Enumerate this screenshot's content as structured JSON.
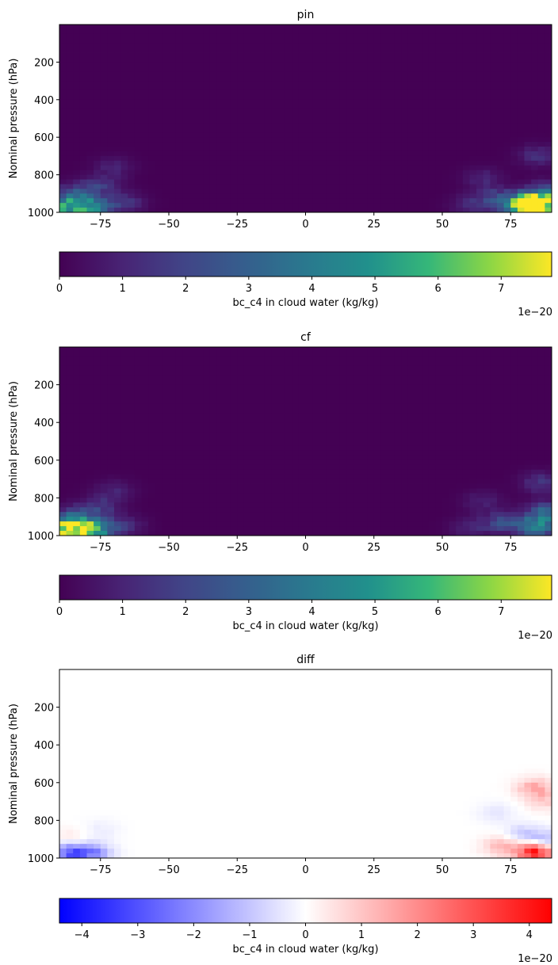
{
  "chart_data": [
    {
      "type": "heatmap",
      "title": "pin",
      "ylabel": "Nominal pressure (hPa)",
      "xlim": [
        -90,
        90
      ],
      "ylim": [
        1000,
        0
      ],
      "xticks": [
        -75,
        -50,
        -25,
        0,
        25,
        50,
        75
      ],
      "yticks": [
        200,
        400,
        600,
        800,
        1000
      ],
      "colormap": "viridis",
      "colorbar": {
        "label": "bc_c4 in cloud water (kg/kg)",
        "range": [
          0,
          7.8
        ],
        "ticks": [
          0,
          1,
          2,
          3,
          4,
          5,
          6,
          7
        ],
        "offset_text": "1e−20"
      },
      "features": [
        {
          "lat": -88,
          "p": 970,
          "value": 5.0
        },
        {
          "lat": -78,
          "p": 975,
          "value": 4.2
        },
        {
          "lat": -84,
          "p": 900,
          "value": 2.0
        },
        {
          "lat": -75,
          "p": 860,
          "value": 1.5
        },
        {
          "lat": -70,
          "p": 760,
          "value": 0.9
        },
        {
          "lat": -66,
          "p": 950,
          "value": 1.4
        },
        {
          "lat": 84,
          "p": 965,
          "value": 7.8
        },
        {
          "lat": 80,
          "p": 960,
          "value": 5.5
        },
        {
          "lat": 88,
          "p": 900,
          "value": 3.2
        },
        {
          "lat": 70,
          "p": 930,
          "value": 2.2
        },
        {
          "lat": 85,
          "p": 700,
          "value": 1.3
        },
        {
          "lat": 65,
          "p": 820,
          "value": 1.0
        },
        {
          "lat": 60,
          "p": 960,
          "value": 1.0
        }
      ]
    },
    {
      "type": "heatmap",
      "title": "cf",
      "ylabel": "Nominal pressure (hPa)",
      "xlim": [
        -90,
        90
      ],
      "ylim": [
        1000,
        0
      ],
      "xticks": [
        -75,
        -50,
        -25,
        0,
        25,
        50,
        75
      ],
      "yticks": [
        200,
        400,
        600,
        800,
        1000
      ],
      "colormap": "viridis",
      "colorbar": {
        "label": "bc_c4 in cloud water (kg/kg)",
        "range": [
          0,
          7.8
        ],
        "ticks": [
          0,
          1,
          2,
          3,
          4,
          5,
          6,
          7
        ],
        "offset_text": "1e−20"
      },
      "features": [
        {
          "lat": -88,
          "p": 968,
          "value": 7.2
        },
        {
          "lat": -78,
          "p": 968,
          "value": 6.0
        },
        {
          "lat": -84,
          "p": 900,
          "value": 2.3
        },
        {
          "lat": -75,
          "p": 850,
          "value": 1.5
        },
        {
          "lat": -70,
          "p": 760,
          "value": 0.9
        },
        {
          "lat": -66,
          "p": 950,
          "value": 1.2
        },
        {
          "lat": 84,
          "p": 950,
          "value": 4.0
        },
        {
          "lat": 88,
          "p": 880,
          "value": 3.0
        },
        {
          "lat": 72,
          "p": 930,
          "value": 2.0
        },
        {
          "lat": 86,
          "p": 720,
          "value": 1.5
        },
        {
          "lat": 65,
          "p": 820,
          "value": 0.9
        },
        {
          "lat": 60,
          "p": 960,
          "value": 1.0
        }
      ]
    },
    {
      "type": "heatmap",
      "title": "diff",
      "ylabel": "Nominal pressure (hPa)",
      "xlim": [
        -90,
        90
      ],
      "ylim": [
        1000,
        0
      ],
      "xticks": [
        -75,
        -50,
        -25,
        0,
        25,
        50,
        75
      ],
      "yticks": [
        200,
        400,
        600,
        800,
        1000
      ],
      "colormap": "bwr",
      "colorbar": {
        "label": "bc_c4 in cloud water (kg/kg)",
        "range": [
          -4.4,
          4.4
        ],
        "ticks": [
          -4,
          -3,
          -2,
          -1,
          0,
          1,
          2,
          3,
          4
        ],
        "offset_text": "1e−20"
      },
      "features": [
        {
          "lat": -87,
          "p": 975,
          "value": -2.5
        },
        {
          "lat": -78,
          "p": 975,
          "value": -2.0
        },
        {
          "lat": -86,
          "p": 900,
          "value": 0.5
        },
        {
          "lat": -75,
          "p": 850,
          "value": -0.3
        },
        {
          "lat": 84,
          "p": 968,
          "value": 4.2
        },
        {
          "lat": 88,
          "p": 920,
          "value": -1.5
        },
        {
          "lat": 80,
          "p": 880,
          "value": -1.0
        },
        {
          "lat": 84,
          "p": 630,
          "value": 1.4
        },
        {
          "lat": 88,
          "p": 700,
          "value": 0.7
        },
        {
          "lat": 72,
          "p": 940,
          "value": 1.2
        },
        {
          "lat": 70,
          "p": 760,
          "value": -0.4
        }
      ]
    }
  ]
}
